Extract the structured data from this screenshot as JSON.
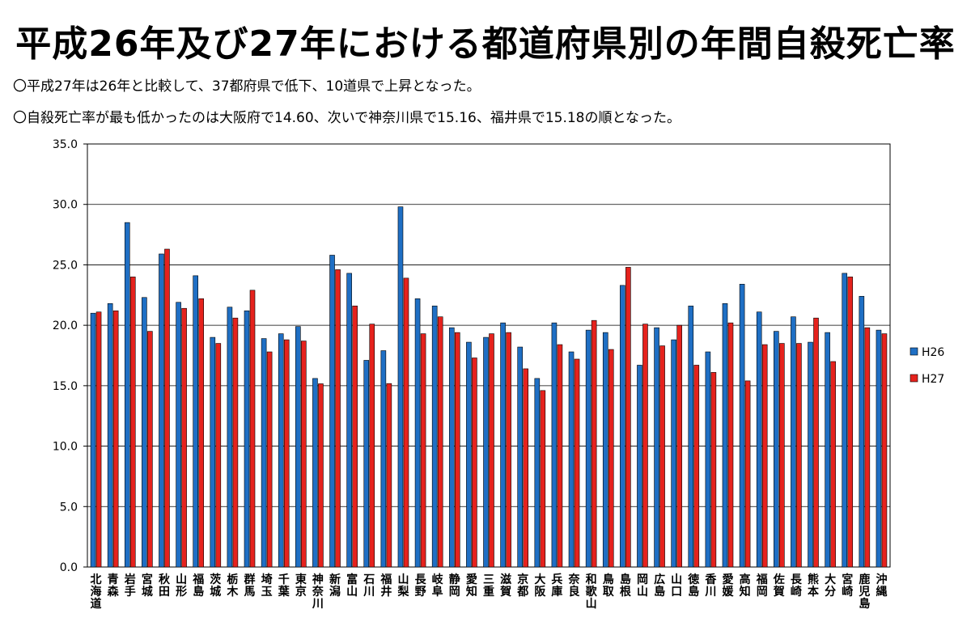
{
  "title": "平成26年及び27年における都道府県別の年間自殺死亡率",
  "notes": [
    "〇平成27年は26年と比較して、37都府県で低下、10道県で上昇となった。",
    "〇自殺死亡率が最も低かったのは大阪府で14.60、次いで神奈川県で15.16、福井県で15.18の順となった。"
  ],
  "chart_data": {
    "type": "bar",
    "title": "平成26年及び27年における都道府県別の年間自殺死亡率",
    "xlabel": "",
    "ylabel": "",
    "ylim": [
      0,
      35
    ],
    "yticks": [
      "0.0",
      "5.0",
      "10.0",
      "15.0",
      "20.0",
      "25.0",
      "30.0",
      "35.0"
    ],
    "grid": true,
    "legend_position": "right",
    "categories": [
      "北海道",
      "青森",
      "岩手",
      "宮城",
      "秋田",
      "山形",
      "福島",
      "茨城",
      "栃木",
      "群馬",
      "埼玉",
      "千葉",
      "東京",
      "神奈川",
      "新潟",
      "富山",
      "石川",
      "福井",
      "山梨",
      "長野",
      "岐阜",
      "静岡",
      "愛知",
      "三重",
      "滋賀",
      "京都",
      "大阪",
      "兵庫",
      "奈良",
      "和歌山",
      "鳥取",
      "島根",
      "岡山",
      "広島",
      "山口",
      "徳島",
      "香川",
      "愛媛",
      "高知",
      "福岡",
      "佐賀",
      "長崎",
      "熊本",
      "大分",
      "宮崎",
      "鹿児島",
      "沖縄"
    ],
    "series": [
      {
        "name": "H26",
        "color": "#1f6fc4",
        "values": [
          21.0,
          21.8,
          28.5,
          22.3,
          25.9,
          21.9,
          24.1,
          19.0,
          21.5,
          21.2,
          18.9,
          19.3,
          19.9,
          15.6,
          25.8,
          24.3,
          17.1,
          17.9,
          29.8,
          22.2,
          21.6,
          19.8,
          18.6,
          19.0,
          20.2,
          18.2,
          15.6,
          20.2,
          17.8,
          19.6,
          19.4,
          23.3,
          16.7,
          19.8,
          18.8,
          21.6,
          17.8,
          21.8,
          23.4,
          21.1,
          19.5,
          20.7,
          18.6,
          19.4,
          24.3,
          22.4,
          19.6
        ]
      },
      {
        "name": "H27",
        "color": "#e5221d",
        "values": [
          21.1,
          21.2,
          24.0,
          19.5,
          26.3,
          21.4,
          22.2,
          18.5,
          20.6,
          22.9,
          17.8,
          18.8,
          18.7,
          15.16,
          24.6,
          21.6,
          20.1,
          15.18,
          23.9,
          19.3,
          20.7,
          19.4,
          17.3,
          19.3,
          19.4,
          16.4,
          14.6,
          18.4,
          17.2,
          20.4,
          18.0,
          24.8,
          20.1,
          18.3,
          20.0,
          16.7,
          16.1,
          20.2,
          15.4,
          18.4,
          18.5,
          18.5,
          20.6,
          17.0,
          24.0,
          19.8,
          19.3
        ]
      }
    ]
  }
}
